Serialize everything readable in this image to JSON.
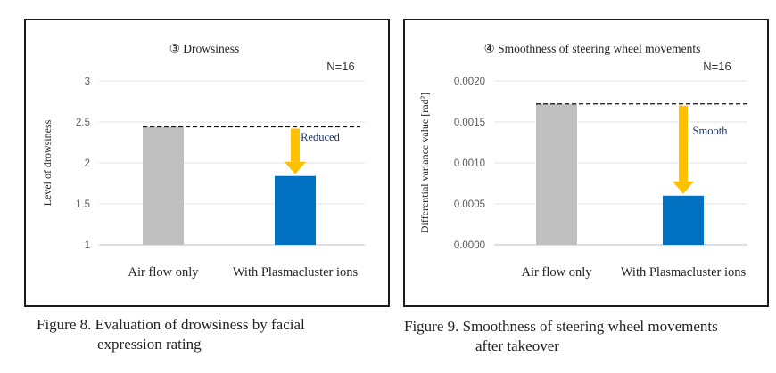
{
  "chart_data": [
    {
      "type": "bar",
      "title": "③ Drowsiness",
      "note": "N=16",
      "ylabel": "Level of drowsiness",
      "categories": [
        "Air flow only",
        "With Plasmacluster ions"
      ],
      "values": [
        2.44,
        1.84
      ],
      "ylim": [
        1,
        3
      ],
      "yticks": [
        "1",
        "1.5",
        "2",
        "2.5",
        "3"
      ],
      "grid": true,
      "annotation": "Reduced",
      "colors": [
        "#bfbfbf",
        "#0070c0"
      ],
      "arrow_color": "#ffc000"
    },
    {
      "type": "bar",
      "title": "④ Smoothness of steering wheel movements",
      "note": "N=16",
      "ylabel": "Differential variance value [rad²]",
      "categories": [
        "Air flow only",
        "With Plasmacluster ions"
      ],
      "values": [
        0.00172,
        0.0006
      ],
      "ylim": [
        0,
        0.002
      ],
      "yticks": [
        "0.0000",
        "0.0005",
        "0.0010",
        "0.0015",
        "0.0020"
      ],
      "grid": true,
      "annotation": "Smooth",
      "colors": [
        "#bfbfbf",
        "#0070c0"
      ],
      "arrow_color": "#ffc000"
    }
  ],
  "captions": [
    {
      "line1": "Figure 8. Evaluation of drowsiness by facial",
      "line2": "expression rating"
    },
    {
      "line1": "Figure 9. Smoothness of steering wheel movements",
      "line2": "after takeover"
    }
  ]
}
